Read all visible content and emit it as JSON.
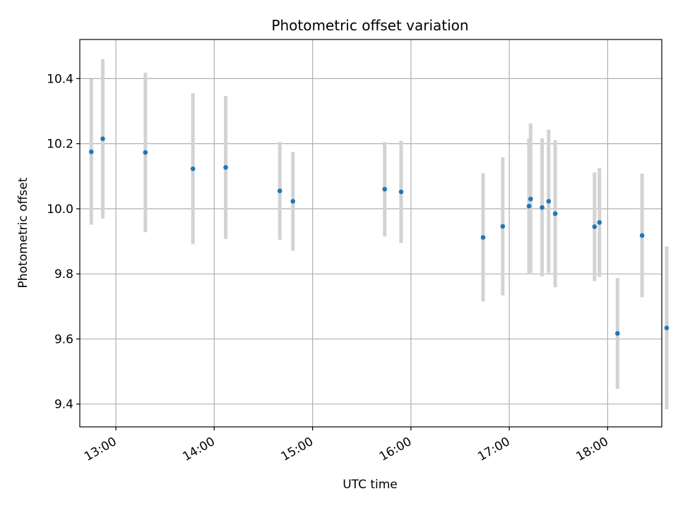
{
  "chart_data": {
    "type": "scatter",
    "title": "Photometric offset variation",
    "xlabel": "UTC time",
    "ylabel": "Photometric offset",
    "xlim": [
      "12:38",
      "18:33"
    ],
    "ylim": [
      9.33,
      10.52
    ],
    "xticks": [
      "13:00",
      "14:00",
      "15:00",
      "16:00",
      "17:00",
      "18:00"
    ],
    "yticks": [
      "9.4",
      "9.6",
      "9.8",
      "10.0",
      "10.2",
      "10.4"
    ],
    "grid": true,
    "colors": {
      "points": "#1f77b4",
      "errorbars": "#d3d3d3",
      "grid": "#b0b0b0"
    },
    "points": [
      {
        "x": "12:45",
        "y": 10.175,
        "err": 0.224
      },
      {
        "x": "12:52",
        "y": 10.215,
        "err": 0.245
      },
      {
        "x": "13:18",
        "y": 10.173,
        "err": 0.245
      },
      {
        "x": "13:47",
        "y": 10.123,
        "err": 0.232
      },
      {
        "x": "14:07",
        "y": 10.127,
        "err": 0.22
      },
      {
        "x": "14:40",
        "y": 10.055,
        "err": 0.15
      },
      {
        "x": "14:48",
        "y": 10.023,
        "err": 0.152
      },
      {
        "x": "15:44",
        "y": 10.06,
        "err": 0.145
      },
      {
        "x": "15:54",
        "y": 10.052,
        "err": 0.157
      },
      {
        "x": "16:44",
        "y": 9.912,
        "err": 0.197
      },
      {
        "x": "16:56",
        "y": 9.946,
        "err": 0.212
      },
      {
        "x": "17:12",
        "y": 10.008,
        "err": 0.208
      },
      {
        "x": "17:13",
        "y": 10.03,
        "err": 0.232
      },
      {
        "x": "17:20",
        "y": 10.004,
        "err": 0.212
      },
      {
        "x": "17:24",
        "y": 10.023,
        "err": 0.22
      },
      {
        "x": "17:28",
        "y": 9.985,
        "err": 0.226
      },
      {
        "x": "17:52",
        "y": 9.945,
        "err": 0.167
      },
      {
        "x": "17:55",
        "y": 9.958,
        "err": 0.167
      },
      {
        "x": "18:06",
        "y": 9.617,
        "err": 0.17
      },
      {
        "x": "18:21",
        "y": 9.918,
        "err": 0.19
      },
      {
        "x": "18:36",
        "y": 9.634,
        "err": 0.25
      }
    ]
  }
}
